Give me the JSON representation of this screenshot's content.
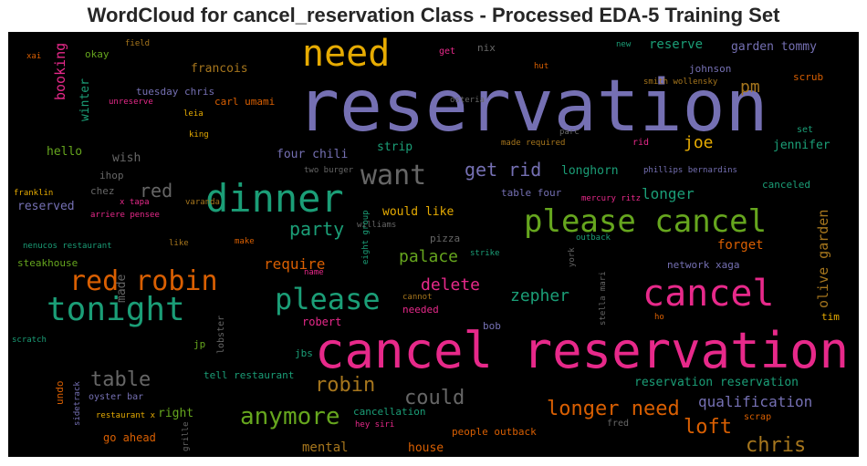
{
  "title": "WordCloud for cancel_reservation Class - Processed EDA-5 Training Set",
  "chart_data": {
    "type": "wordcloud",
    "background": "#000000",
    "colormap": [
      "#7570b3",
      "#1b9e77",
      "#d95f02",
      "#e7298a",
      "#66a61e",
      "#e6ab02",
      "#a6761d",
      "#666666"
    ],
    "words": [
      {
        "text": "reservation",
        "color": "#7570b3"
      },
      {
        "text": "cancel reservation",
        "color": "#e7298a"
      },
      {
        "text": "dinner",
        "color": "#1b9e77"
      },
      {
        "text": "please cancel",
        "color": "#66a61e"
      },
      {
        "text": "need",
        "color": "#e6ab02"
      },
      {
        "text": "cancel",
        "color": "#e7298a"
      },
      {
        "text": "tonight",
        "color": "#1b9e77"
      },
      {
        "text": "red robin",
        "color": "#d95f02"
      },
      {
        "text": "please",
        "color": "#1b9e77"
      },
      {
        "text": "want",
        "color": "#666666"
      },
      {
        "text": "anymore",
        "color": "#66a61e"
      },
      {
        "text": "party",
        "color": "#1b9e77"
      },
      {
        "text": "red",
        "color": "#666666"
      },
      {
        "text": "table",
        "color": "#666666"
      },
      {
        "text": "could",
        "color": "#666666"
      },
      {
        "text": "robin",
        "color": "#a6761d"
      },
      {
        "text": "longer need",
        "color": "#d95f02"
      },
      {
        "text": "chris",
        "color": "#a6761d"
      },
      {
        "text": "loft",
        "color": "#d95f02"
      },
      {
        "text": "get rid",
        "color": "#7570b3"
      },
      {
        "text": "delete",
        "color": "#e7298a"
      },
      {
        "text": "zepher",
        "color": "#1b9e77"
      },
      {
        "text": "palace",
        "color": "#66a61e"
      },
      {
        "text": "require",
        "color": "#d95f02"
      },
      {
        "text": "qualification",
        "color": "#7570b3"
      },
      {
        "text": "olive garden",
        "color": "#a6761d"
      },
      {
        "text": "pm",
        "color": "#a6761d"
      },
      {
        "text": "joe",
        "color": "#e6ab02"
      },
      {
        "text": "longer",
        "color": "#1b9e77"
      },
      {
        "text": "forget",
        "color": "#d95f02"
      },
      {
        "text": "mental",
        "color": "#a6761d"
      },
      {
        "text": "reserve",
        "color": "#1b9e77"
      },
      {
        "text": "booking",
        "color": "#e7298a"
      },
      {
        "text": "francois",
        "color": "#a6761d"
      },
      {
        "text": "jennifer",
        "color": "#1b9e77"
      },
      {
        "text": "garden tommy",
        "color": "#7570b3"
      },
      {
        "text": "reservation reservation",
        "color": "#1b9e77"
      },
      {
        "text": "house",
        "color": "#d95f02"
      },
      {
        "text": "right",
        "color": "#66a61e"
      },
      {
        "text": "go ahead",
        "color": "#d95f02"
      },
      {
        "text": "longhorn",
        "color": "#1b9e77"
      },
      {
        "text": "would like",
        "color": "#e6ab02"
      },
      {
        "text": "robert",
        "color": "#e7298a"
      },
      {
        "text": "four chili",
        "color": "#7570b3"
      },
      {
        "text": "strip",
        "color": "#1b9e77"
      },
      {
        "text": "hello",
        "color": "#66a61e"
      },
      {
        "text": "wish",
        "color": "#666666"
      },
      {
        "text": "reserved",
        "color": "#7570b3"
      },
      {
        "text": "steakhouse",
        "color": "#66a61e"
      },
      {
        "text": "winter",
        "color": "#1b9e77"
      },
      {
        "text": "okay",
        "color": "#66a61e"
      },
      {
        "text": "tuesday chris",
        "color": "#7570b3"
      },
      {
        "text": "carl umami",
        "color": "#d95f02"
      },
      {
        "text": "johnson",
        "color": "#7570b3"
      },
      {
        "text": "scrub",
        "color": "#d95f02"
      },
      {
        "text": "nix",
        "color": "#666666"
      },
      {
        "text": "get",
        "color": "#e7298a"
      },
      {
        "text": "cancellation",
        "color": "#1b9e77"
      },
      {
        "text": "people outback",
        "color": "#d95f02"
      },
      {
        "text": "tell restaurant",
        "color": "#1b9e77"
      },
      {
        "text": "network xaga",
        "color": "#7570b3"
      },
      {
        "text": "made",
        "color": "#666666"
      },
      {
        "text": "jp",
        "color": "#66a61e"
      },
      {
        "text": "jbs",
        "color": "#1b9e77"
      },
      {
        "text": "bob",
        "color": "#7570b3"
      },
      {
        "text": "needed",
        "color": "#e7298a"
      },
      {
        "text": "tim",
        "color": "#e6ab02"
      },
      {
        "text": "table four",
        "color": "#7570b3"
      },
      {
        "text": "canceled",
        "color": "#1b9e77"
      },
      {
        "text": "pizza",
        "color": "#666666"
      },
      {
        "text": "chez",
        "color": "#666666"
      },
      {
        "text": "ihop",
        "color": "#666666"
      },
      {
        "text": "undo",
        "color": "#d95f02"
      },
      {
        "text": "lobster",
        "color": "#666666"
      },
      {
        "text": "oyster bar",
        "color": "#7570b3"
      },
      {
        "text": "scrap",
        "color": "#d95f02"
      },
      {
        "text": "rid",
        "color": "#e7298a"
      },
      {
        "text": "set",
        "color": "#1b9e77"
      },
      {
        "text": "fred",
        "color": "#666666"
      },
      {
        "text": "field",
        "color": "#a6761d"
      },
      {
        "text": "xai",
        "color": "#d95f02"
      },
      {
        "text": "unreserve",
        "color": "#e7298a"
      },
      {
        "text": "leia",
        "color": "#e6ab02"
      },
      {
        "text": "king",
        "color": "#e6ab02"
      },
      {
        "text": "franklin",
        "color": "#e6ab02"
      },
      {
        "text": "x tapa",
        "color": "#e7298a"
      },
      {
        "text": "arriere pensee",
        "color": "#e7298a"
      },
      {
        "text": "varanda",
        "color": "#a6761d"
      },
      {
        "text": "two burger",
        "color": "#666666"
      },
      {
        "text": "nenucos restaurant",
        "color": "#1b9e77"
      },
      {
        "text": "like",
        "color": "#a6761d"
      },
      {
        "text": "make",
        "color": "#d95f02"
      },
      {
        "text": "williams",
        "color": "#666666"
      },
      {
        "text": "eight group",
        "color": "#1b9e77"
      },
      {
        "text": "name",
        "color": "#e7298a"
      },
      {
        "text": "cannot",
        "color": "#a6761d"
      },
      {
        "text": "strike",
        "color": "#1b9e77"
      },
      {
        "text": "outback",
        "color": "#1b9e77"
      },
      {
        "text": "york",
        "color": "#666666"
      },
      {
        "text": "stella mari",
        "color": "#666666"
      },
      {
        "text": "ho",
        "color": "#d95f02"
      },
      {
        "text": "osteria",
        "color": "#666666"
      },
      {
        "text": "hut",
        "color": "#d95f02"
      },
      {
        "text": "new",
        "color": "#1b9e77"
      },
      {
        "text": "smith wollensky",
        "color": "#a6761d"
      },
      {
        "text": "parc",
        "color": "#666666"
      },
      {
        "text": "made required",
        "color": "#a6761d"
      },
      {
        "text": "phillips bernardins",
        "color": "#7570b3"
      },
      {
        "text": "mercury ritz",
        "color": "#e7298a"
      },
      {
        "text": "scratch",
        "color": "#1b9e77"
      },
      {
        "text": "sidetrack",
        "color": "#7570b3"
      },
      {
        "text": "restaurant x",
        "color": "#e6ab02"
      },
      {
        "text": "grille",
        "color": "#666666"
      },
      {
        "text": "hey siri",
        "color": "#e7298a"
      }
    ]
  }
}
